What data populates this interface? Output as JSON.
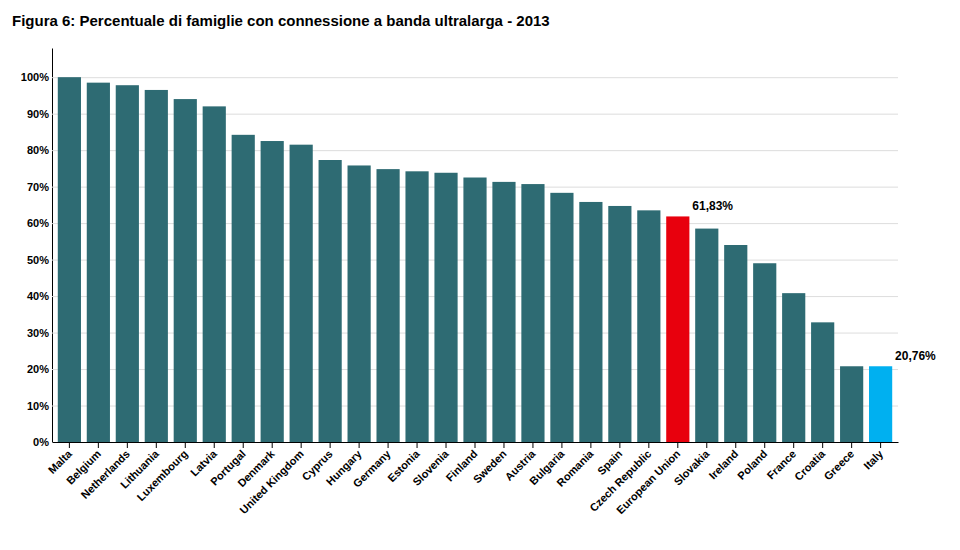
{
  "chart_data": {
    "type": "bar",
    "title": "Figura 6: Percentuale di famiglie con connessione a banda ultralarga - 2013",
    "categories": [
      "Malta",
      "Belgium",
      "Netherlands",
      "Lithuania",
      "Luxembourg",
      "Latvia",
      "Portugal",
      "Denmark",
      "United Kingdom",
      "Cyprus",
      "Hungary",
      "Germany",
      "Estonia",
      "Slovenia",
      "Finland",
      "Sweden",
      "Austria",
      "Bulgaria",
      "Romania",
      "Spain",
      "Czech Republic",
      "European Union",
      "Slovakia",
      "Ireland",
      "Poland",
      "France",
      "Croatia",
      "Greece",
      "Italy"
    ],
    "values": [
      100.0,
      98.5,
      97.8,
      96.5,
      94.0,
      92.0,
      84.2,
      82.5,
      81.5,
      77.3,
      75.8,
      74.8,
      74.2,
      73.8,
      72.5,
      71.3,
      70.7,
      68.3,
      65.8,
      64.7,
      63.5,
      61.83,
      58.5,
      54.0,
      49.0,
      40.8,
      32.8,
      20.76,
      20.76
    ],
    "colors": [
      "#2e6b73",
      "#2e6b73",
      "#2e6b73",
      "#2e6b73",
      "#2e6b73",
      "#2e6b73",
      "#2e6b73",
      "#2e6b73",
      "#2e6b73",
      "#2e6b73",
      "#2e6b73",
      "#2e6b73",
      "#2e6b73",
      "#2e6b73",
      "#2e6b73",
      "#2e6b73",
      "#2e6b73",
      "#2e6b73",
      "#2e6b73",
      "#2e6b73",
      "#2e6b73",
      "#e8000d",
      "#2e6b73",
      "#2e6b73",
      "#2e6b73",
      "#2e6b73",
      "#2e6b73",
      "#2e6b73",
      "#00b0f0"
    ],
    "annotations": [
      {
        "category": "European Union",
        "value": 61.83,
        "text": "61,83%"
      },
      {
        "category": "Italy",
        "value": 20.76,
        "text": "20,76%"
      }
    ],
    "ylim": [
      0,
      108
    ],
    "yticks": [
      {
        "value": 0,
        "label": "0%"
      },
      {
        "value": 10,
        "label": "10%"
      },
      {
        "value": 20,
        "label": "20%"
      },
      {
        "value": 30,
        "label": "30%"
      },
      {
        "value": 40,
        "label": "40%"
      },
      {
        "value": 50,
        "label": "50%"
      },
      {
        "value": 60,
        "label": "60%"
      },
      {
        "value": 70,
        "label": "70%"
      },
      {
        "value": 80,
        "label": "80%"
      },
      {
        "value": 90,
        "label": "90%"
      },
      {
        "value": 100,
        "label": "100%"
      }
    ],
    "grid": true
  }
}
